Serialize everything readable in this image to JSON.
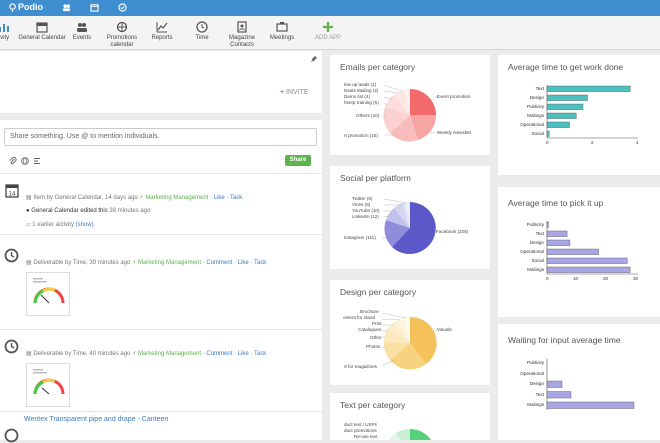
{
  "topbar": {
    "logo": "Podio"
  },
  "apps": [
    {
      "label": "ivity",
      "icon": "activity-icon"
    },
    {
      "label": "General Calendar",
      "icon": "calendar-icon"
    },
    {
      "label": "Events",
      "icon": "events-icon"
    },
    {
      "label": "Promotions calendar",
      "icon": "promotions-icon"
    },
    {
      "label": "Reports",
      "icon": "reports-icon"
    },
    {
      "label": "Time",
      "icon": "clock-icon"
    },
    {
      "label": "Magazine Contacts",
      "icon": "contacts-icon"
    },
    {
      "label": "Meetings",
      "icon": "meetings-icon"
    },
    {
      "label": "ADD APP",
      "icon": "plus-icon"
    }
  ],
  "invite": {
    "plus": "+",
    "label": "INVITE"
  },
  "share": {
    "placeholder": "Share something. Use @ to mention individuals.",
    "button": "Share"
  },
  "feed": {
    "item1": {
      "line": "Item by General Calendar, 14 days ago",
      "tag": "Marketing Management",
      "like": "Like",
      "task": "Task",
      "edit_actor": "General Calendar",
      "edit_rest": "edited this",
      "edit_time": "38 minutes ago",
      "earlier": "1 earlier activity",
      "show": "(show)"
    },
    "item2": {
      "line": "Deliverable by Time, 39 minutes ago",
      "tag": "Marketing Management",
      "comment": "Comment",
      "like": "Like",
      "task": "Task"
    },
    "item3": {
      "line": "Deliverable by Time, 40 minutes ago",
      "tag": "Marketing Management",
      "comment": "Comment",
      "like": "Like",
      "task": "Task"
    },
    "link_title": "Wentex Transparent pipe and drape - Canteen"
  },
  "widgets": {
    "emails": {
      "title": "Emails per category",
      "labels": [
        "low up leads (1)",
        "Deals Mailing (2)",
        "Demo list (4)",
        "hsrep training (5)",
        "Others (10)",
        "rt promotion (15)",
        "Event promotion",
        "Weekly Newslett"
      ]
    },
    "social": {
      "title": "Social per platform",
      "labels": [
        "Twitter (5)",
        "Vines (6)",
        "YouTube (10)",
        "LinkedIn (12)",
        "Instagram (111)",
        "Facebook (226)"
      ]
    },
    "design": {
      "title": "Design per category",
      "labels": [
        "Brochure",
        "ontent for stand",
        "Print",
        "Catalogues",
        "Other",
        "Photos",
        "rt for magazines",
        "Visuals"
      ]
    },
    "text": {
      "title": "Text per category",
      "labels": [
        "duct text / USPs",
        "duct promotions",
        "Re-use text"
      ]
    },
    "done": {
      "title": "Average time to get work done",
      "categories": [
        "Text",
        "Design",
        "Publicity",
        "Mailings",
        "Operational",
        "Social"
      ],
      "values": [
        3.7,
        1.8,
        1.6,
        1.3,
        1.0,
        0.1
      ],
      "ticks": [
        "0",
        "2",
        "4"
      ]
    },
    "pick": {
      "title": "Average time to pick it up",
      "categories": [
        "Publicity",
        "Text",
        "Design",
        "Operational",
        "Social",
        "Mailings"
      ],
      "values": [
        0.5,
        7,
        8,
        18,
        28,
        29
      ],
      "ticks": [
        "0",
        "10",
        "20",
        "30"
      ]
    },
    "wait": {
      "title": "Waiting for input average time",
      "categories": [
        "Publicity",
        "Operational",
        "Design",
        "Text",
        "Mailings"
      ],
      "values": [
        0,
        0,
        5,
        8,
        29
      ]
    }
  },
  "colors": {
    "brand": "#3e8ed0",
    "green": "#5db34e",
    "email": "#f26a6a",
    "social": "#5b59c9",
    "design": "#f5c15a",
    "text": "#56d17a",
    "barTeal": "#4cc0bf",
    "barLav": "#a9a6e6"
  }
}
